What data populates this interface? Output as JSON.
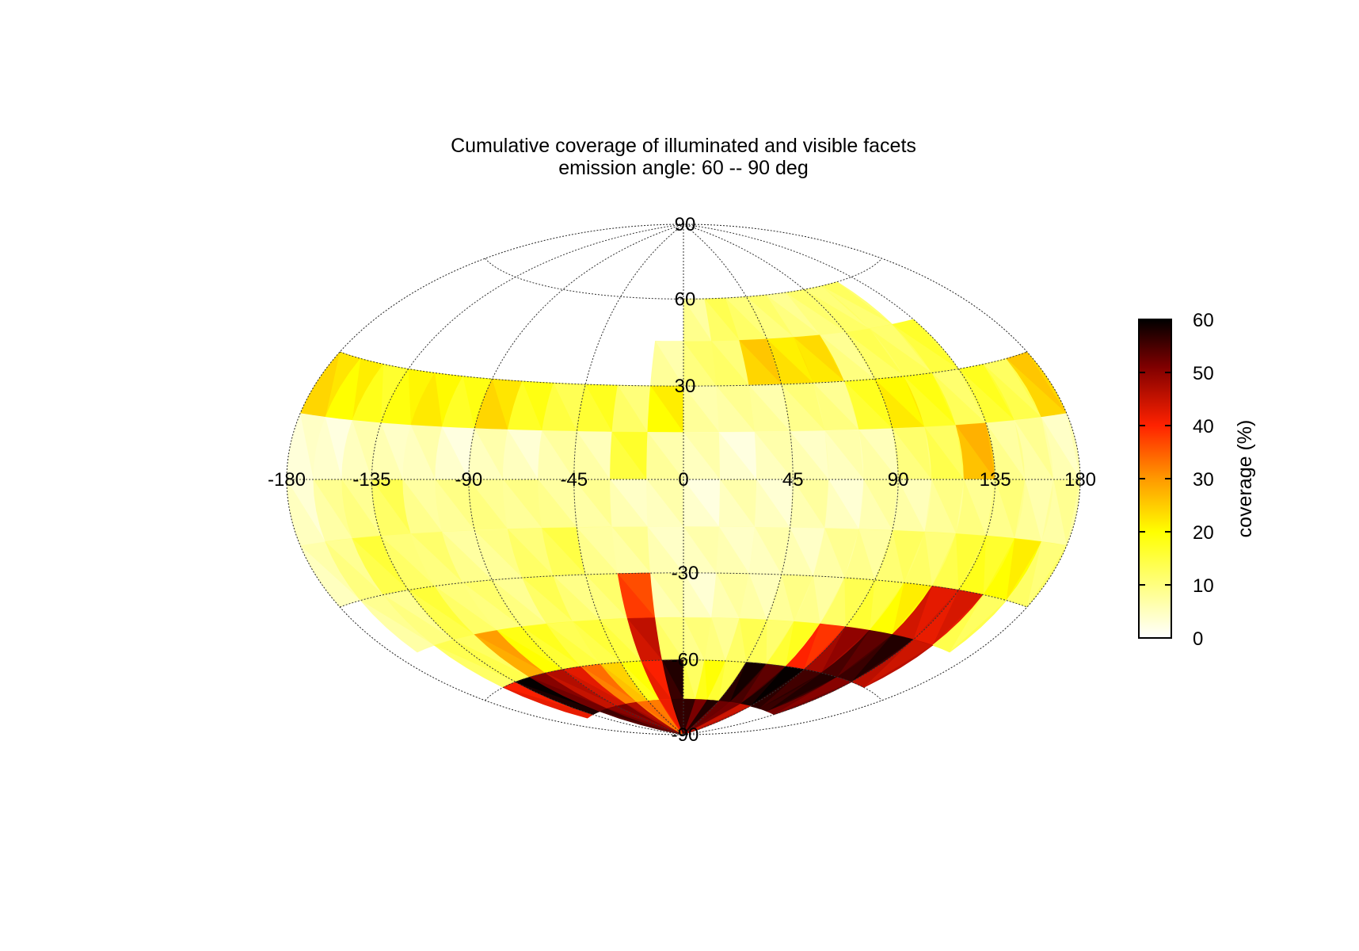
{
  "chart_data": {
    "type": "heatmap",
    "projection": "hammer-aitoff",
    "title": "Cumulative coverage of illuminated and visible facets",
    "subtitle": "emission angle: 60 -- 90 deg",
    "xlim": [
      -180,
      180
    ],
    "ylim": [
      -90,
      90
    ],
    "x_ticks": [
      "-180",
      "-135",
      "-90",
      "-45",
      "0",
      "45",
      "90",
      "135",
      "180"
    ],
    "y_ticks": [
      "90",
      "60",
      "30",
      "-30",
      "-60",
      "-90"
    ],
    "grid": true,
    "colorbar": {
      "label": "coverage (%)",
      "min": 0,
      "max": 60,
      "ticks": [
        "0",
        "10",
        "20",
        "30",
        "40",
        "50",
        "60"
      ],
      "colormap": "hot (reversed)",
      "placement": "right"
    },
    "cell_size_deg": [
      15,
      15
    ],
    "lat_bands": [
      52.5,
      37.5,
      22.5,
      7.5,
      -7.5,
      -22.5,
      -37.5,
      -52.5,
      -67.5,
      -82.5
    ],
    "lon_centers": [
      -172.5,
      -157.5,
      -142.5,
      -127.5,
      -112.5,
      -97.5,
      -82.5,
      -67.5,
      -52.5,
      -37.5,
      -22.5,
      -7.5,
      7.5,
      22.5,
      37.5,
      52.5,
      67.5,
      82.5,
      97.5,
      112.5,
      127.5,
      142.5,
      157.5,
      172.5
    ],
    "coverage_grid": [
      [
        null,
        null,
        null,
        null,
        null,
        null,
        null,
        null,
        null,
        null,
        null,
        null,
        9,
        12,
        12,
        10,
        10,
        10,
        12,
        11,
        null,
        null,
        null,
        null
      ],
      [
        null,
        null,
        null,
        null,
        null,
        null,
        null,
        null,
        null,
        null,
        null,
        8,
        10,
        12,
        24,
        23,
        22,
        10,
        12,
        13,
        15,
        null,
        null,
        null
      ],
      [
        24,
        20,
        18,
        19,
        22,
        17,
        24,
        17,
        15,
        16,
        12,
        20,
        8,
        7,
        8,
        9,
        10,
        16,
        22,
        17,
        13,
        16,
        14,
        24
      ],
      [
        3,
        4,
        5,
        6,
        5,
        4,
        5,
        5,
        6,
        7,
        15,
        8,
        5,
        4,
        5,
        6,
        5,
        7,
        10,
        14,
        26,
        9,
        7,
        6
      ],
      [
        5,
        7,
        10,
        12,
        9,
        8,
        10,
        8,
        9,
        7,
        6,
        5,
        4,
        5,
        5,
        6,
        5,
        6,
        7,
        8,
        10,
        9,
        8,
        7
      ],
      [
        5,
        10,
        14,
        12,
        10,
        9,
        8,
        12,
        13,
        9,
        7,
        6,
        5,
        6,
        5,
        6,
        7,
        9,
        11,
        12,
        14,
        18,
        20,
        12
      ],
      [
        null,
        7,
        10,
        14,
        12,
        10,
        10,
        12,
        11,
        10,
        38,
        6,
        5,
        6,
        7,
        8,
        9,
        12,
        16,
        20,
        44,
        42,
        14,
        null
      ],
      [
        null,
        null,
        12,
        14,
        28,
        20,
        16,
        15,
        14,
        15,
        44,
        12,
        9,
        10,
        12,
        13,
        16,
        40,
        48,
        55,
        56,
        46,
        null,
        null
      ],
      [
        null,
        null,
        42,
        58,
        52,
        45,
        44,
        32,
        26,
        18,
        42,
        56,
        14,
        18,
        16,
        57,
        55,
        58,
        57,
        56,
        52,
        null,
        null,
        null
      ],
      [
        null,
        null,
        null,
        null,
        54,
        52,
        50,
        48,
        32,
        34,
        40,
        58,
        55,
        53,
        56,
        54,
        50,
        46,
        null,
        null,
        null,
        null,
        null,
        null
      ]
    ]
  }
}
